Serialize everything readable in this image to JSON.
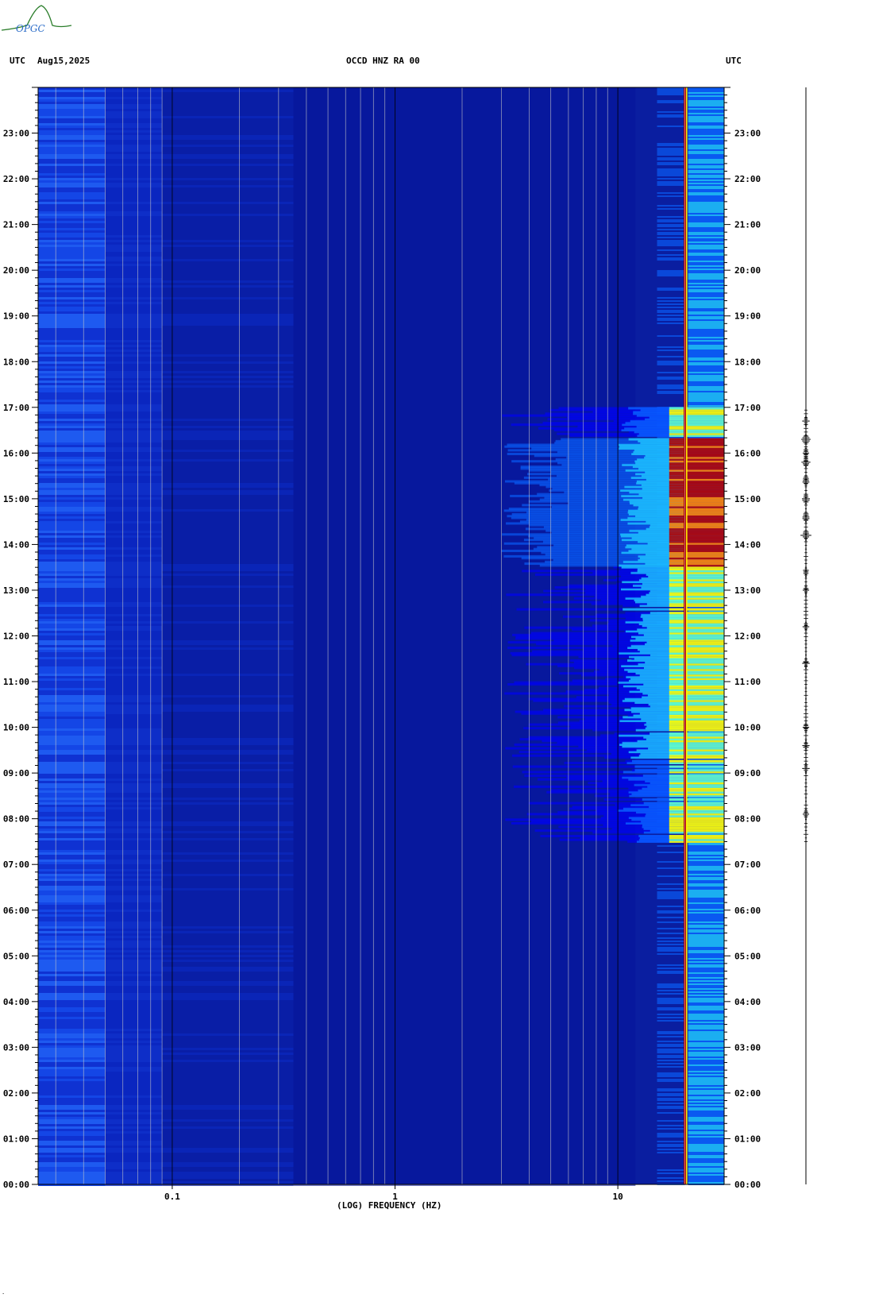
{
  "header": {
    "left_tz": "UTC",
    "date": "Aug15,2025",
    "station": "OCCD HNZ RA 00",
    "right_tz": "UTC"
  },
  "logo": {
    "text": "OPGC",
    "color": "#2a7d2a"
  },
  "chart_data": {
    "type": "heatmap",
    "title": "OCCD HNZ RA 00",
    "xlabel": "(LOG) FREQUENCY (HZ)",
    "ylabel": "",
    "x_scale": "log",
    "xlim": [
      0.025,
      30
    ],
    "x_tick_labels": [
      "0.1",
      "1",
      "10"
    ],
    "x_ticks": [
      0.1,
      1,
      10
    ],
    "ylim": [
      "00:00",
      "24:00"
    ],
    "y_tick_labels": [
      "00:00",
      "01:00",
      "02:00",
      "03:00",
      "04:00",
      "05:00",
      "06:00",
      "07:00",
      "08:00",
      "09:00",
      "10:00",
      "11:00",
      "12:00",
      "13:00",
      "14:00",
      "15:00",
      "16:00",
      "17:00",
      "18:00",
      "19:00",
      "20:00",
      "21:00",
      "22:00",
      "23:00"
    ],
    "y_ticks_hours": [
      0,
      1,
      2,
      3,
      4,
      5,
      6,
      7,
      8,
      9,
      10,
      11,
      12,
      13,
      14,
      15,
      16,
      17,
      18,
      19,
      20,
      21,
      22,
      23
    ],
    "colormap": [
      "#00008b",
      "#0000ff",
      "#0a64ff",
      "#1ec8ff",
      "#64ffc8",
      "#ffff00",
      "#ff8000",
      "#b40000"
    ],
    "background_color": "#0a1ea0",
    "persistent_line_hz": 20,
    "persistent_line_color": "#b40000",
    "activity_window_hours": [
      7.5,
      17.0
    ],
    "peak_activity_hours": [
      13.5,
      16.3
    ],
    "activity_min_freq_hz": 3,
    "seismogram_events_hours": [
      8.1,
      9.1,
      9.6,
      10.0,
      11.4,
      12.2,
      13.0,
      13.4,
      14.2,
      14.6,
      15.0,
      15.4,
      15.8,
      16.0,
      16.3,
      16.7
    ]
  },
  "footer": {
    "corner_mark": "·"
  }
}
